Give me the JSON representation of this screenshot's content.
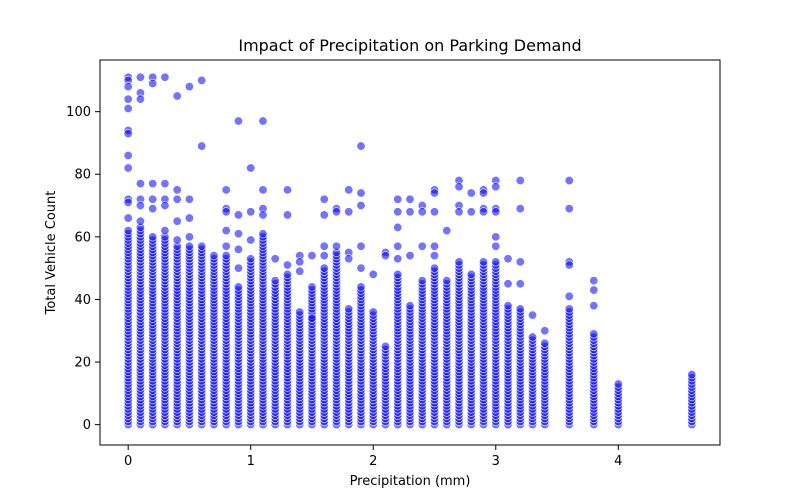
{
  "chart_data": {
    "type": "scatter",
    "title": "Impact of Precipitation on Parking Demand",
    "xlabel": "Precipitation (mm)",
    "ylabel": "Total Vehicle Count",
    "xlim": [
      -0.23,
      4.83
    ],
    "ylim": [
      -6.5,
      116.5
    ],
    "x_ticks": [
      0,
      1,
      2,
      3,
      4
    ],
    "y_ticks": [
      0,
      20,
      40,
      60,
      80,
      100
    ],
    "x_tick_labels": [
      "0",
      "1",
      "2",
      "3",
      "4"
    ],
    "y_tick_labels": [
      "0",
      "20",
      "40",
      "60",
      "80",
      "100"
    ],
    "grid": false,
    "legend": "none",
    "marker_color": "#0000ff",
    "marker_alpha": 0.55,
    "marker_edge_color": "#ffffff",
    "columns": [
      {
        "x": 0.0,
        "ymax": 62
      },
      {
        "x": 0.1,
        "ymax": 63
      },
      {
        "x": 0.2,
        "ymax": 60
      },
      {
        "x": 0.3,
        "ymax": 60
      },
      {
        "x": 0.4,
        "ymax": 57
      },
      {
        "x": 0.5,
        "ymax": 57
      },
      {
        "x": 0.6,
        "ymax": 57
      },
      {
        "x": 0.7,
        "ymax": 54
      },
      {
        "x": 0.8,
        "ymax": 54
      },
      {
        "x": 0.9,
        "ymax": 44
      },
      {
        "x": 1.0,
        "ymax": 53
      },
      {
        "x": 1.1,
        "ymax": 61
      },
      {
        "x": 1.2,
        "ymax": 46
      },
      {
        "x": 1.3,
        "ymax": 48
      },
      {
        "x": 1.4,
        "ymax": 36
      },
      {
        "x": 1.5,
        "ymax": 44
      },
      {
        "x": 1.6,
        "ymax": 50
      },
      {
        "x": 1.7,
        "ymax": 55
      },
      {
        "x": 1.8,
        "ymax": 37
      },
      {
        "x": 1.9,
        "ymax": 44
      },
      {
        "x": 2.0,
        "ymax": 36
      },
      {
        "x": 2.1,
        "ymax": 25
      },
      {
        "x": 2.2,
        "ymax": 48
      },
      {
        "x": 2.3,
        "ymax": 38
      },
      {
        "x": 2.4,
        "ymax": 46
      },
      {
        "x": 2.5,
        "ymax": 50
      },
      {
        "x": 2.6,
        "ymax": 46
      },
      {
        "x": 2.7,
        "ymax": 52
      },
      {
        "x": 2.8,
        "ymax": 48
      },
      {
        "x": 2.9,
        "ymax": 52
      },
      {
        "x": 3.0,
        "ymax": 52
      },
      {
        "x": 3.1,
        "ymax": 38
      },
      {
        "x": 3.2,
        "ymax": 37
      },
      {
        "x": 3.3,
        "ymax": 28
      },
      {
        "x": 3.4,
        "ymax": 26
      },
      {
        "x": 3.6,
        "ymax": 37
      },
      {
        "x": 3.8,
        "ymax": 29
      },
      {
        "x": 4.0,
        "ymax": 13
      },
      {
        "x": 4.6,
        "ymax": 16
      }
    ],
    "outliers": [
      {
        "x": 0.0,
        "y": 111
      },
      {
        "x": 0.0,
        "y": 110
      },
      {
        "x": 0.0,
        "y": 108
      },
      {
        "x": 0.0,
        "y": 104
      },
      {
        "x": 0.0,
        "y": 101
      },
      {
        "x": 0.0,
        "y": 94
      },
      {
        "x": 0.0,
        "y": 93
      },
      {
        "x": 0.0,
        "y": 86
      },
      {
        "x": 0.0,
        "y": 82
      },
      {
        "x": 0.0,
        "y": 72
      },
      {
        "x": 0.0,
        "y": 71
      },
      {
        "x": 0.0,
        "y": 66
      },
      {
        "x": 0.1,
        "y": 111
      },
      {
        "x": 0.1,
        "y": 106
      },
      {
        "x": 0.1,
        "y": 104
      },
      {
        "x": 0.1,
        "y": 77
      },
      {
        "x": 0.1,
        "y": 72
      },
      {
        "x": 0.1,
        "y": 70
      },
      {
        "x": 0.1,
        "y": 65
      },
      {
        "x": 0.2,
        "y": 111
      },
      {
        "x": 0.2,
        "y": 109
      },
      {
        "x": 0.2,
        "y": 77
      },
      {
        "x": 0.2,
        "y": 72
      },
      {
        "x": 0.2,
        "y": 69
      },
      {
        "x": 0.3,
        "y": 111
      },
      {
        "x": 0.3,
        "y": 77
      },
      {
        "x": 0.3,
        "y": 72
      },
      {
        "x": 0.3,
        "y": 70
      },
      {
        "x": 0.3,
        "y": 62
      },
      {
        "x": 0.4,
        "y": 105
      },
      {
        "x": 0.4,
        "y": 75
      },
      {
        "x": 0.4,
        "y": 72
      },
      {
        "x": 0.4,
        "y": 65
      },
      {
        "x": 0.4,
        "y": 59
      },
      {
        "x": 0.5,
        "y": 108
      },
      {
        "x": 0.5,
        "y": 72
      },
      {
        "x": 0.5,
        "y": 66
      },
      {
        "x": 0.5,
        "y": 60
      },
      {
        "x": 0.6,
        "y": 110
      },
      {
        "x": 0.6,
        "y": 89
      },
      {
        "x": 0.8,
        "y": 75
      },
      {
        "x": 0.8,
        "y": 69
      },
      {
        "x": 0.8,
        "y": 68
      },
      {
        "x": 0.8,
        "y": 62
      },
      {
        "x": 0.8,
        "y": 57
      },
      {
        "x": 0.9,
        "y": 97
      },
      {
        "x": 0.9,
        "y": 67
      },
      {
        "x": 0.9,
        "y": 61
      },
      {
        "x": 0.9,
        "y": 56
      },
      {
        "x": 0.9,
        "y": 50
      },
      {
        "x": 1.0,
        "y": 82
      },
      {
        "x": 1.0,
        "y": 68
      },
      {
        "x": 1.0,
        "y": 59
      },
      {
        "x": 1.1,
        "y": 97
      },
      {
        "x": 1.1,
        "y": 75
      },
      {
        "x": 1.1,
        "y": 69
      },
      {
        "x": 1.1,
        "y": 67
      },
      {
        "x": 1.2,
        "y": 53
      },
      {
        "x": 1.3,
        "y": 75
      },
      {
        "x": 1.3,
        "y": 67
      },
      {
        "x": 1.3,
        "y": 51
      },
      {
        "x": 1.4,
        "y": 54
      },
      {
        "x": 1.4,
        "y": 52
      },
      {
        "x": 1.4,
        "y": 49
      },
      {
        "x": 1.5,
        "y": 54
      },
      {
        "x": 1.5,
        "y": 34
      },
      {
        "x": 1.6,
        "y": 72
      },
      {
        "x": 1.6,
        "y": 67
      },
      {
        "x": 1.6,
        "y": 57
      },
      {
        "x": 1.6,
        "y": 54
      },
      {
        "x": 1.7,
        "y": 69
      },
      {
        "x": 1.7,
        "y": 68
      },
      {
        "x": 1.7,
        "y": 57
      },
      {
        "x": 1.8,
        "y": 75
      },
      {
        "x": 1.8,
        "y": 68
      },
      {
        "x": 1.8,
        "y": 55
      },
      {
        "x": 1.8,
        "y": 53
      },
      {
        "x": 1.9,
        "y": 89
      },
      {
        "x": 1.9,
        "y": 74
      },
      {
        "x": 1.9,
        "y": 70
      },
      {
        "x": 1.9,
        "y": 57
      },
      {
        "x": 1.9,
        "y": 50
      },
      {
        "x": 2.0,
        "y": 48
      },
      {
        "x": 2.1,
        "y": 55
      },
      {
        "x": 2.1,
        "y": 54
      },
      {
        "x": 2.2,
        "y": 72
      },
      {
        "x": 2.2,
        "y": 68
      },
      {
        "x": 2.2,
        "y": 63
      },
      {
        "x": 2.2,
        "y": 57
      },
      {
        "x": 2.2,
        "y": 53
      },
      {
        "x": 2.3,
        "y": 72
      },
      {
        "x": 2.3,
        "y": 68
      },
      {
        "x": 2.3,
        "y": 54
      },
      {
        "x": 2.4,
        "y": 70
      },
      {
        "x": 2.4,
        "y": 68
      },
      {
        "x": 2.4,
        "y": 57
      },
      {
        "x": 2.5,
        "y": 75
      },
      {
        "x": 2.5,
        "y": 74
      },
      {
        "x": 2.5,
        "y": 68
      },
      {
        "x": 2.5,
        "y": 57
      },
      {
        "x": 2.5,
        "y": 54
      },
      {
        "x": 2.6,
        "y": 62
      },
      {
        "x": 2.7,
        "y": 78
      },
      {
        "x": 2.7,
        "y": 76
      },
      {
        "x": 2.7,
        "y": 70
      },
      {
        "x": 2.7,
        "y": 68
      },
      {
        "x": 2.8,
        "y": 74
      },
      {
        "x": 2.8,
        "y": 68
      },
      {
        "x": 2.9,
        "y": 75
      },
      {
        "x": 2.9,
        "y": 74
      },
      {
        "x": 2.9,
        "y": 69
      },
      {
        "x": 2.9,
        "y": 68
      },
      {
        "x": 3.0,
        "y": 78
      },
      {
        "x": 3.0,
        "y": 76
      },
      {
        "x": 3.0,
        "y": 69
      },
      {
        "x": 3.0,
        "y": 68
      },
      {
        "x": 3.0,
        "y": 60
      },
      {
        "x": 3.0,
        "y": 57
      },
      {
        "x": 3.1,
        "y": 53
      },
      {
        "x": 3.1,
        "y": 45
      },
      {
        "x": 3.2,
        "y": 78
      },
      {
        "x": 3.2,
        "y": 69
      },
      {
        "x": 3.2,
        "y": 52
      },
      {
        "x": 3.2,
        "y": 45
      },
      {
        "x": 3.3,
        "y": 35
      },
      {
        "x": 3.4,
        "y": 30
      },
      {
        "x": 3.6,
        "y": 78
      },
      {
        "x": 3.6,
        "y": 69
      },
      {
        "x": 3.6,
        "y": 52
      },
      {
        "x": 3.6,
        "y": 51
      },
      {
        "x": 3.6,
        "y": 41
      },
      {
        "x": 3.8,
        "y": 46
      },
      {
        "x": 3.8,
        "y": 43
      },
      {
        "x": 3.8,
        "y": 38
      }
    ]
  }
}
